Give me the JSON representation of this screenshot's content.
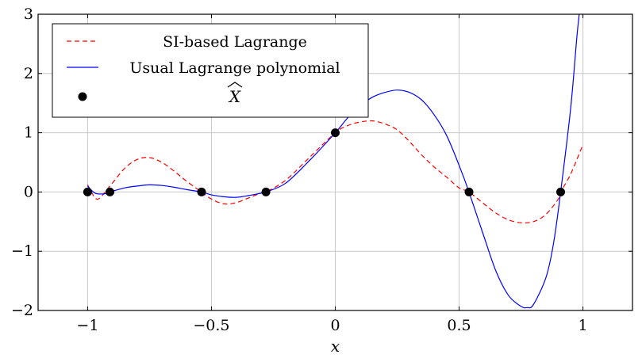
{
  "chart_data": {
    "type": "line",
    "xlabel": "x",
    "ylabel": "",
    "xlim": [
      -1.2,
      1.2
    ],
    "ylim": [
      -2,
      3
    ],
    "grid": true,
    "legend_position": "top-left",
    "xticks": [
      {
        "value": -1,
        "label": "−1"
      },
      {
        "value": -0.5,
        "label": "−0.5"
      },
      {
        "value": 0,
        "label": "0"
      },
      {
        "value": 0.5,
        "label": "0.5"
      },
      {
        "value": 1,
        "label": "1"
      }
    ],
    "yticks": [
      {
        "value": -2,
        "label": "−2"
      },
      {
        "value": -1,
        "label": "−1"
      },
      {
        "value": 0,
        "label": "0"
      },
      {
        "value": 1,
        "label": "1"
      },
      {
        "value": 2,
        "label": "2"
      },
      {
        "value": 3,
        "label": "3"
      }
    ],
    "series": [
      {
        "name": "SI-based Lagrange",
        "style": "dashed",
        "color": "#ff0000",
        "x": [
          -1.0,
          -0.97,
          -0.95,
          -0.92,
          -0.9,
          -0.85,
          -0.8,
          -0.75,
          -0.7,
          -0.65,
          -0.6,
          -0.54,
          -0.5,
          -0.45,
          -0.4,
          -0.35,
          -0.3,
          -0.28,
          -0.2,
          -0.1,
          0.0,
          0.05,
          0.1,
          0.15,
          0.2,
          0.25,
          0.3,
          0.35,
          0.4,
          0.45,
          0.5,
          0.54,
          0.6,
          0.65,
          0.7,
          0.75,
          0.8,
          0.85,
          0.9,
          0.91,
          0.95,
          1.0
        ],
        "y": [
          0.12,
          -0.1,
          -0.1,
          0.05,
          0.15,
          0.4,
          0.55,
          0.58,
          0.5,
          0.35,
          0.18,
          0.0,
          -0.12,
          -0.2,
          -0.18,
          -0.1,
          -0.02,
          0.0,
          0.2,
          0.6,
          1.0,
          1.12,
          1.18,
          1.2,
          1.15,
          1.05,
          0.85,
          0.62,
          0.42,
          0.25,
          0.07,
          0.0,
          -0.2,
          -0.36,
          -0.47,
          -0.52,
          -0.5,
          -0.38,
          -0.12,
          0.0,
          0.3,
          0.8
        ]
      },
      {
        "name": "Usual Lagrange polynomial",
        "style": "solid",
        "color": "#0000ff",
        "x": [
          -1.0,
          -0.97,
          -0.93,
          -0.91,
          -0.85,
          -0.8,
          -0.75,
          -0.7,
          -0.65,
          -0.6,
          -0.54,
          -0.5,
          -0.45,
          -0.4,
          -0.35,
          -0.3,
          -0.28,
          -0.2,
          -0.1,
          0.0,
          0.05,
          0.1,
          0.15,
          0.2,
          0.25,
          0.3,
          0.35,
          0.4,
          0.45,
          0.5,
          0.54,
          0.6,
          0.65,
          0.7,
          0.75,
          0.775,
          0.8,
          0.85,
          0.88,
          0.91,
          0.95,
          0.975,
          0.985
        ],
        "y": [
          0.1,
          -0.02,
          -0.03,
          0.0,
          0.07,
          0.1,
          0.12,
          0.11,
          0.08,
          0.04,
          0.0,
          -0.05,
          -0.08,
          -0.09,
          -0.06,
          -0.02,
          0.0,
          0.15,
          0.55,
          1.0,
          1.25,
          1.45,
          1.6,
          1.68,
          1.72,
          1.68,
          1.55,
          1.3,
          0.95,
          0.45,
          0.0,
          -0.75,
          -1.35,
          -1.75,
          -1.93,
          -1.95,
          -1.9,
          -1.45,
          -0.9,
          0.0,
          1.4,
          2.6,
          3.0
        ]
      }
    ],
    "points": {
      "name": "X̂",
      "color": "#000000",
      "x": [
        -1.0,
        -0.91,
        -0.54,
        -0.28,
        0.0,
        0.54,
        0.91
      ],
      "y": [
        0,
        0,
        0,
        0,
        1,
        0,
        0
      ]
    }
  },
  "legend": {
    "items": [
      {
        "label": "SI-based Lagrange"
      },
      {
        "label": "Usual Lagrange polynomial"
      },
      {
        "label": "X"
      }
    ]
  }
}
